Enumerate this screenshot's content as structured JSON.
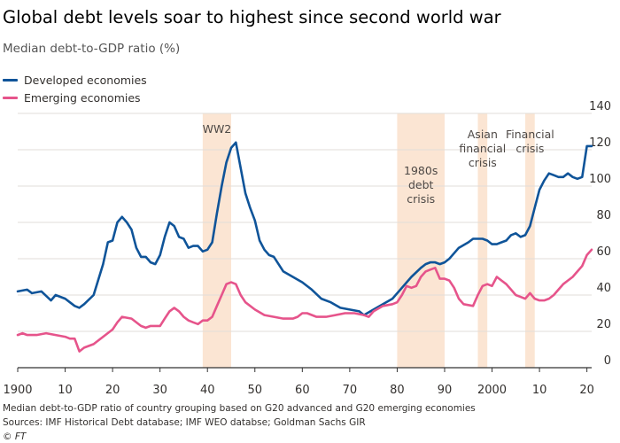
{
  "chart_data": {
    "type": "line",
    "title": "Global debt levels soar to highest since second world war",
    "subtitle": "Median debt-to-GDP ratio (%)",
    "xlabel": "",
    "ylabel": "",
    "xlim": [
      1900,
      2021
    ],
    "ylim": [
      0,
      140
    ],
    "x_ticks": [
      1900,
      1910,
      1920,
      1930,
      1940,
      1950,
      1960,
      1970,
      1980,
      1990,
      2000,
      2010,
      2020
    ],
    "x_tick_labels": [
      "1900",
      "10",
      "20",
      "30",
      "40",
      "50",
      "60",
      "70",
      "80",
      "90",
      "2000",
      "10",
      "20"
    ],
    "y_ticks": [
      0,
      20,
      40,
      60,
      80,
      100,
      120,
      140
    ],
    "y_tick_labels": [
      "0",
      "20",
      "40",
      "60",
      "80",
      "100",
      "120",
      "140"
    ],
    "y_axis_side": "right",
    "grid": true,
    "legend_position": "top-left",
    "series": [
      {
        "name": "Developed economies",
        "color": "#0f5499",
        "points": [
          [
            1900,
            42
          ],
          [
            1902,
            43
          ],
          [
            1903,
            41
          ],
          [
            1905,
            42
          ],
          [
            1907,
            37
          ],
          [
            1908,
            40
          ],
          [
            1910,
            38
          ],
          [
            1911,
            36
          ],
          [
            1912,
            34
          ],
          [
            1913,
            33
          ],
          [
            1914,
            35
          ],
          [
            1916,
            40
          ],
          [
            1918,
            57
          ],
          [
            1919,
            69
          ],
          [
            1920,
            70
          ],
          [
            1921,
            80
          ],
          [
            1922,
            83
          ],
          [
            1923,
            80
          ],
          [
            1924,
            76
          ],
          [
            1925,
            66
          ],
          [
            1926,
            61
          ],
          [
            1927,
            61
          ],
          [
            1928,
            58
          ],
          [
            1929,
            57
          ],
          [
            1930,
            62
          ],
          [
            1931,
            72
          ],
          [
            1932,
            80
          ],
          [
            1933,
            78
          ],
          [
            1934,
            72
          ],
          [
            1935,
            71
          ],
          [
            1936,
            66
          ],
          [
            1937,
            67
          ],
          [
            1938,
            67
          ],
          [
            1939,
            64
          ],
          [
            1940,
            65
          ],
          [
            1941,
            69
          ],
          [
            1942,
            85
          ],
          [
            1943,
            100
          ],
          [
            1944,
            113
          ],
          [
            1945,
            121
          ],
          [
            1946,
            124
          ],
          [
            1947,
            110
          ],
          [
            1948,
            96
          ],
          [
            1949,
            88
          ],
          [
            1950,
            81
          ],
          [
            1951,
            70
          ],
          [
            1952,
            65
          ],
          [
            1953,
            62
          ],
          [
            1954,
            61
          ],
          [
            1956,
            53
          ],
          [
            1958,
            50
          ],
          [
            1960,
            47
          ],
          [
            1962,
            43
          ],
          [
            1964,
            38
          ],
          [
            1966,
            36
          ],
          [
            1968,
            33
          ],
          [
            1970,
            32
          ],
          [
            1972,
            31
          ],
          [
            1973,
            29
          ],
          [
            1975,
            32
          ],
          [
            1977,
            35
          ],
          [
            1979,
            38
          ],
          [
            1981,
            44
          ],
          [
            1983,
            50
          ],
          [
            1985,
            55
          ],
          [
            1986,
            57
          ],
          [
            1987,
            58
          ],
          [
            1988,
            58
          ],
          [
            1989,
            57
          ],
          [
            1990,
            58
          ],
          [
            1991,
            60
          ],
          [
            1993,
            66
          ],
          [
            1995,
            69
          ],
          [
            1996,
            71
          ],
          [
            1997,
            71
          ],
          [
            1998,
            71
          ],
          [
            1999,
            70
          ],
          [
            2000,
            68
          ],
          [
            2001,
            68
          ],
          [
            2002,
            69
          ],
          [
            2003,
            70
          ],
          [
            2004,
            73
          ],
          [
            2005,
            74
          ],
          [
            2006,
            72
          ],
          [
            2007,
            73
          ],
          [
            2008,
            78
          ],
          [
            2009,
            88
          ],
          [
            2010,
            98
          ],
          [
            2011,
            103
          ],
          [
            2012,
            107
          ],
          [
            2013,
            106
          ],
          [
            2014,
            105
          ],
          [
            2015,
            105
          ],
          [
            2016,
            107
          ],
          [
            2017,
            105
          ],
          [
            2018,
            104
          ],
          [
            2019,
            105
          ],
          [
            2020,
            122
          ],
          [
            2021,
            122
          ]
        ]
      },
      {
        "name": "Emerging economies",
        "color": "#e6548b",
        "points": [
          [
            1900,
            18
          ],
          [
            1901,
            19
          ],
          [
            1902,
            18
          ],
          [
            1904,
            18
          ],
          [
            1906,
            19
          ],
          [
            1908,
            18
          ],
          [
            1910,
            17
          ],
          [
            1911,
            16
          ],
          [
            1912,
            16
          ],
          [
            1913,
            9
          ],
          [
            1914,
            11
          ],
          [
            1916,
            13
          ],
          [
            1918,
            17
          ],
          [
            1920,
            21
          ],
          [
            1921,
            25
          ],
          [
            1922,
            28
          ],
          [
            1924,
            27
          ],
          [
            1926,
            23
          ],
          [
            1927,
            22
          ],
          [
            1928,
            23
          ],
          [
            1930,
            23
          ],
          [
            1931,
            27
          ],
          [
            1932,
            31
          ],
          [
            1933,
            33
          ],
          [
            1934,
            31
          ],
          [
            1935,
            28
          ],
          [
            1936,
            26
          ],
          [
            1937,
            25
          ],
          [
            1938,
            24
          ],
          [
            1939,
            26
          ],
          [
            1940,
            26
          ],
          [
            1941,
            28
          ],
          [
            1942,
            34
          ],
          [
            1943,
            40
          ],
          [
            1944,
            46
          ],
          [
            1945,
            47
          ],
          [
            1946,
            46
          ],
          [
            1947,
            40
          ],
          [
            1948,
            36
          ],
          [
            1950,
            32
          ],
          [
            1952,
            29
          ],
          [
            1954,
            28
          ],
          [
            1956,
            27
          ],
          [
            1958,
            27
          ],
          [
            1959,
            28
          ],
          [
            1960,
            30
          ],
          [
            1961,
            30
          ],
          [
            1963,
            28
          ],
          [
            1965,
            28
          ],
          [
            1967,
            29
          ],
          [
            1969,
            30
          ],
          [
            1971,
            30
          ],
          [
            1973,
            29
          ],
          [
            1974,
            28
          ],
          [
            1975,
            31
          ],
          [
            1977,
            34
          ],
          [
            1979,
            35
          ],
          [
            1980,
            36
          ],
          [
            1981,
            40
          ],
          [
            1982,
            45
          ],
          [
            1983,
            44
          ],
          [
            1984,
            45
          ],
          [
            1985,
            50
          ],
          [
            1986,
            53
          ],
          [
            1987,
            54
          ],
          [
            1988,
            55
          ],
          [
            1989,
            49
          ],
          [
            1990,
            49
          ],
          [
            1991,
            48
          ],
          [
            1992,
            44
          ],
          [
            1993,
            38
          ],
          [
            1994,
            35
          ],
          [
            1996,
            34
          ],
          [
            1997,
            40
          ],
          [
            1998,
            45
          ],
          [
            1999,
            46
          ],
          [
            2000,
            45
          ],
          [
            2001,
            50
          ],
          [
            2002,
            48
          ],
          [
            2003,
            46
          ],
          [
            2004,
            43
          ],
          [
            2005,
            40
          ],
          [
            2006,
            39
          ],
          [
            2007,
            38
          ],
          [
            2008,
            41
          ],
          [
            2009,
            38
          ],
          [
            2010,
            37
          ],
          [
            2011,
            37
          ],
          [
            2012,
            38
          ],
          [
            2013,
            40
          ],
          [
            2014,
            43
          ],
          [
            2015,
            46
          ],
          [
            2016,
            48
          ],
          [
            2017,
            50
          ],
          [
            2018,
            53
          ],
          [
            2019,
            56
          ],
          [
            2020,
            62
          ],
          [
            2021,
            65
          ]
        ]
      }
    ],
    "shaded_periods": [
      {
        "start": 1939,
        "end": 1945,
        "label": "WW2"
      },
      {
        "start": 1980,
        "end": 1990,
        "label": "1980s\ndebt\ncrisis"
      },
      {
        "start": 1997,
        "end": 1999,
        "label": "Asian\nfinancial\ncrisis"
      },
      {
        "start": 2007,
        "end": 2009,
        "label": "Financial\ncrisis"
      }
    ],
    "shade_color": "#fbe5d3"
  },
  "footnotes": {
    "note": "Median debt-to-GDP ratio of country grouping based on G20 advanced and G20 emerging economies",
    "sources": "Sources: IMF Historical Debt database; IMF WEO databse; Goldman Sachs GIR",
    "credit": "© FT"
  }
}
